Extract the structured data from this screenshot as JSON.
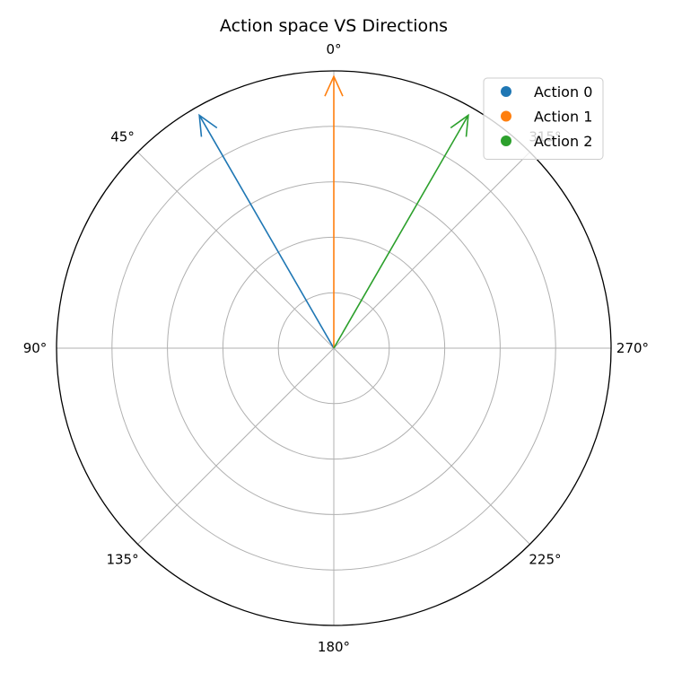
{
  "chart_data": {
    "type": "polar-arrows",
    "title": "Action space VS Directions",
    "theta_zero": "top",
    "theta_direction": "counterclockwise",
    "angle_ticks": [
      "0°",
      "45°",
      "90°",
      "135°",
      "180°",
      "225°",
      "270°",
      "315°"
    ],
    "angle_tick_values": [
      0,
      45,
      90,
      135,
      180,
      225,
      270,
      315
    ],
    "radial_range": [
      0,
      1
    ],
    "radial_gridlines": [
      0.2,
      0.4,
      0.6,
      0.8,
      1.0
    ],
    "grid": true,
    "legend_position": "top-right",
    "series": [
      {
        "name": "Action 0",
        "color": "#1f77b4",
        "angle": 30,
        "length": 0.97
      },
      {
        "name": "Action 1",
        "color": "#ff7f0e",
        "angle": 0,
        "length": 0.98
      },
      {
        "name": "Action 2",
        "color": "#2ca02c",
        "angle": 330,
        "length": 0.97
      }
    ]
  }
}
